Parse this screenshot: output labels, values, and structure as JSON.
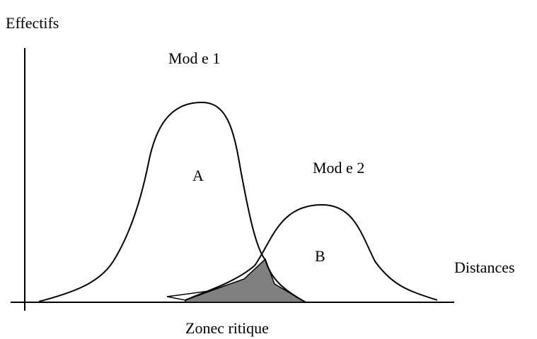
{
  "y_axis_label": "Effectifs",
  "x_axis_label": "Distances",
  "zone_label": "Zonec ritique",
  "modes": [
    {
      "label": "Mod e 1",
      "region": "A"
    },
    {
      "label": "Mod e 2",
      "region": "B"
    }
  ]
}
